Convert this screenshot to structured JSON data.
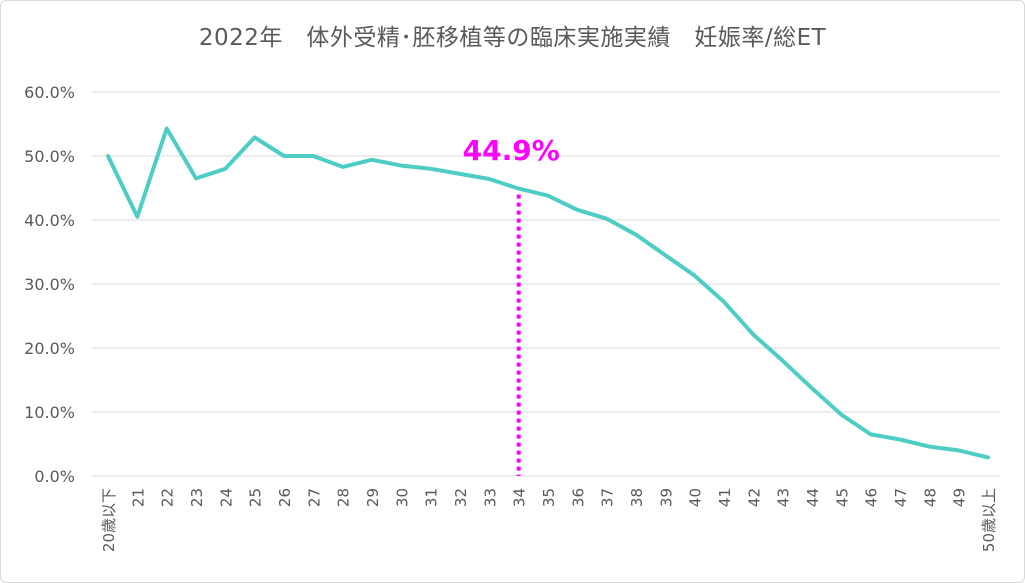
{
  "chart_data": {
    "type": "line",
    "title": "2022年　体外受精･胚移植等の臨床実施実績　妊娠率/総ET",
    "categories": [
      "20歳以下",
      "21",
      "22",
      "23",
      "24",
      "25",
      "26",
      "27",
      "28",
      "29",
      "30",
      "31",
      "32",
      "33",
      "34",
      "35",
      "36",
      "37",
      "38",
      "39",
      "40",
      "41",
      "42",
      "43",
      "44",
      "45",
      "46",
      "47",
      "48",
      "49",
      "50歳以上"
    ],
    "series": [
      {
        "values": [
          50.0,
          40.5,
          54.3,
          46.5,
          48.0,
          52.9,
          50.0,
          50.0,
          48.3,
          49.4,
          48.5,
          48.0,
          47.2,
          46.4,
          44.9,
          43.8,
          41.6,
          40.2,
          37.7,
          34.5,
          31.3,
          27.2,
          22.1,
          18.0,
          13.7,
          9.6,
          6.5,
          5.7,
          4.6,
          4.0,
          2.9
        ],
        "color": "#4ecdc4"
      }
    ],
    "ylim": [
      0,
      60
    ],
    "yticks": [
      0,
      10,
      20,
      30,
      40,
      50,
      60
    ],
    "ytick_labels": [
      "0.0%",
      "10.0%",
      "20.0%",
      "30.0%",
      "40.0%",
      "50.0%",
      "60.0%"
    ],
    "grid": true,
    "annotation": {
      "text": "44.9%",
      "category": "34",
      "value": 44.9,
      "color": "#ff00ff"
    }
  }
}
